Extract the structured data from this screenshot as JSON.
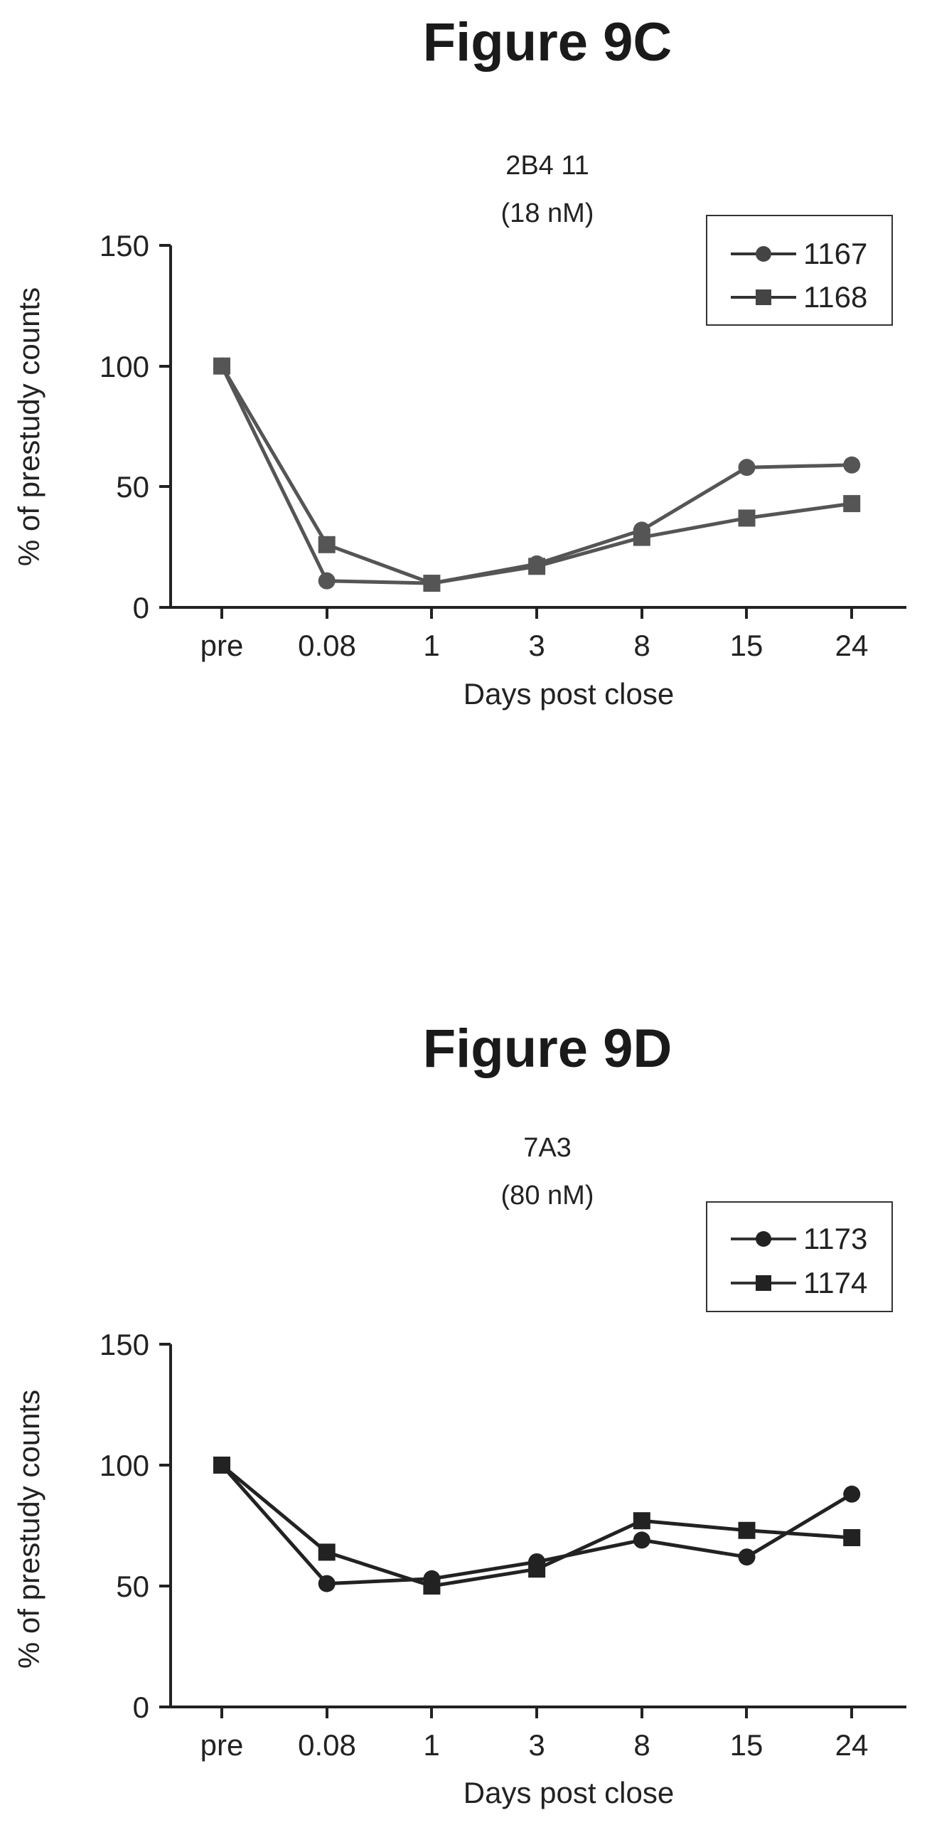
{
  "chart_data": [
    {
      "type": "line",
      "figure_label": "Figure 9C",
      "title": "2B4 11",
      "subtitle": "(18 nM)",
      "xlabel": "Days post close",
      "ylabel": "% of prestudy counts",
      "categories": [
        "pre",
        "0.08",
        "1",
        "3",
        "8",
        "15",
        "24"
      ],
      "ylim": [
        0,
        150
      ],
      "yticks": [
        0,
        50,
        100,
        150
      ],
      "legend_position": "top-right",
      "series": [
        {
          "name": "1167",
          "marker": "circle",
          "values": [
            100,
            11,
            10,
            18,
            32,
            58,
            59
          ]
        },
        {
          "name": "1168",
          "marker": "square",
          "values": [
            100,
            26,
            10,
            17,
            29,
            37,
            43
          ]
        }
      ]
    },
    {
      "type": "line",
      "figure_label": "Figure 9D",
      "title": "7A3",
      "subtitle": "(80 nM)",
      "xlabel": "Days post close",
      "ylabel": "% of prestudy counts",
      "categories": [
        "pre",
        "0.08",
        "1",
        "3",
        "8",
        "15",
        "24"
      ],
      "ylim": [
        0,
        150
      ],
      "yticks": [
        0,
        50,
        100,
        150
      ],
      "legend_position": "top-right",
      "series": [
        {
          "name": "1173",
          "marker": "circle",
          "values": [
            100,
            51,
            53,
            60,
            69,
            62,
            88
          ]
        },
        {
          "name": "1174",
          "marker": "square",
          "values": [
            100,
            64,
            50,
            57,
            77,
            73,
            70
          ]
        }
      ]
    }
  ]
}
